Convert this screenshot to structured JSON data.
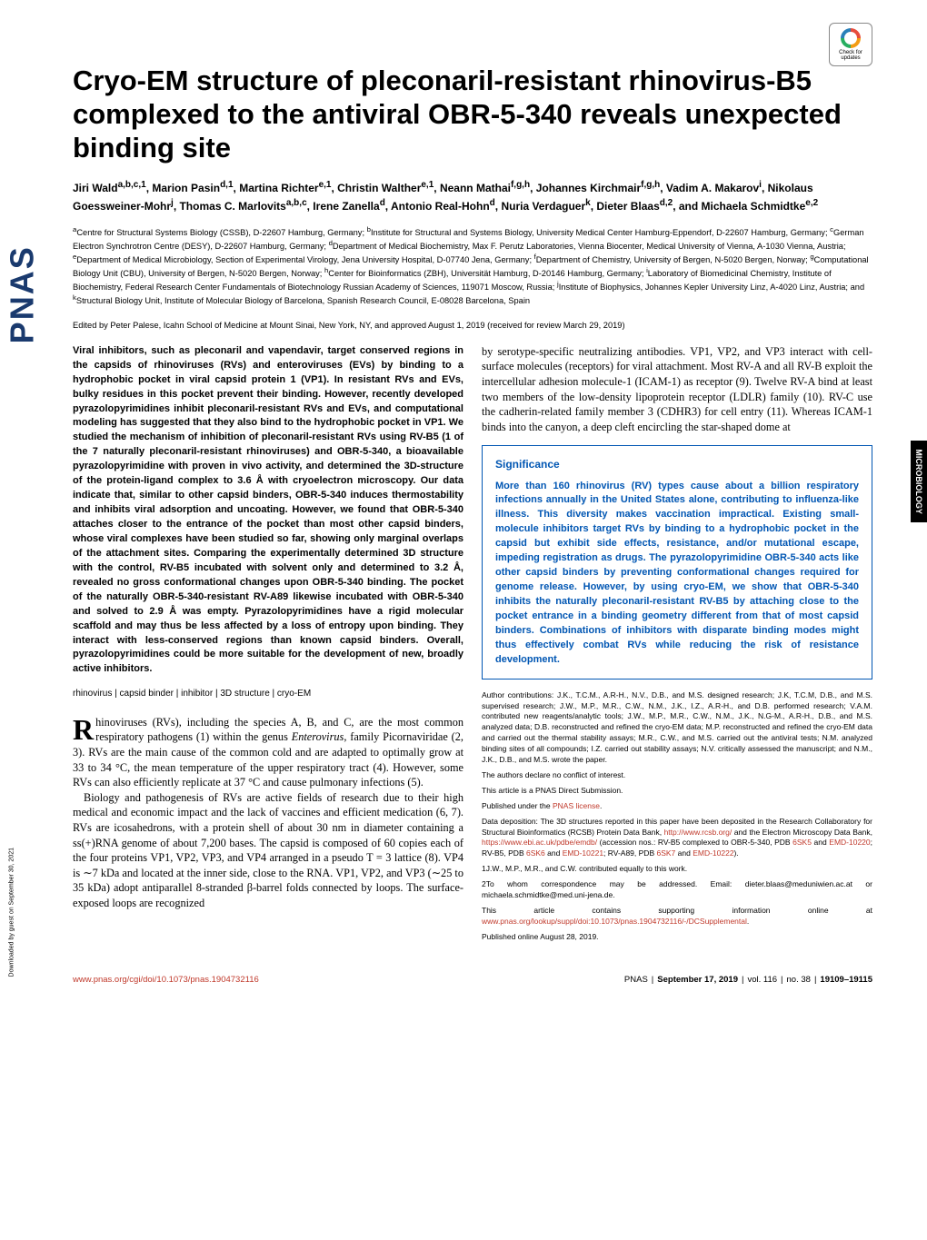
{
  "journal_sidebar": "PNAS",
  "download_note": "Downloaded by guest on September 30, 2021",
  "crossmark_label": "Check for updates",
  "side_tab": "MICROBIOLOGY",
  "title": "Cryo-EM structure of pleconaril-resistant rhinovirus-B5 complexed to the antiviral OBR-5-340 reveals unexpected binding site",
  "authors_html": "Jiri Wald<sup>a,b,c,1</sup>, Marion Pasin<sup>d,1</sup>, Martina Richter<sup>e,1</sup>, Christin Walther<sup>e,1</sup>, Neann Mathai<sup>f,g,h</sup>, Johannes Kirchmair<sup>f,g,h</sup>, Vadim A. Makarov<sup>i</sup>, Nikolaus Goessweiner-Mohr<sup>j</sup>, Thomas C. Marlovits<sup>a,b,c</sup>, Irene Zanella<sup>d</sup>, Antonio Real-Hohn<sup>d</sup>, Nuria Verdaguer<sup>k</sup>, Dieter Blaas<sup>d,2</sup>, and Michaela Schmidtke<sup>e,2</sup>",
  "affiliations_html": "<sup>a</sup>Centre for Structural Systems Biology (CSSB), D-22607 Hamburg, Germany; <sup>b</sup>Institute for Structural and Systems Biology, University Medical Center Hamburg-Eppendorf, D-22607 Hamburg, Germany; <sup>c</sup>German Electron Synchrotron Centre (DESY), D-22607 Hamburg, Germany; <sup>d</sup>Department of Medical Biochemistry, Max F. Perutz Laboratories, Vienna Biocenter, Medical University of Vienna, A-1030 Vienna, Austria; <sup>e</sup>Department of Medical Microbiology, Section of Experimental Virology, Jena University Hospital, D-07740 Jena, Germany; <sup>f</sup>Department of Chemistry, University of Bergen, N-5020 Bergen, Norway; <sup>g</sup>Computational Biology Unit (CBU), University of Bergen, N-5020 Bergen, Norway; <sup>h</sup>Center for Bioinformatics (ZBH), Universität Hamburg, D-20146 Hamburg, Germany; <sup>i</sup>Laboratory of Biomedicinal Chemistry, Institute of Biochemistry, Federal Research Center Fundamentals of Biotechnology Russian Academy of Sciences, 119071 Moscow, Russia; <sup>j</sup>Institute of Biophysics, Johannes Kepler University Linz, A-4020 Linz, Austria; and <sup>k</sup>Structural Biology Unit, Institute of Molecular Biology of Barcelona, Spanish Research Council, E-08028 Barcelona, Spain",
  "edited": "Edited by Peter Palese, Icahn School of Medicine at Mount Sinai, New York, NY, and approved August 1, 2019 (received for review March 29, 2019)",
  "abstract": "Viral inhibitors, such as pleconaril and vapendavir, target conserved regions in the capsids of rhinoviruses (RVs) and enteroviruses (EVs) by binding to a hydrophobic pocket in viral capsid protein 1 (VP1). In resistant RVs and EVs, bulky residues in this pocket prevent their binding. However, recently developed pyrazolopyrimidines inhibit pleconaril-resistant RVs and EVs, and computational modeling has suggested that they also bind to the hydrophobic pocket in VP1. We studied the mechanism of inhibition of pleconaril-resistant RVs using RV-B5 (1 of the 7 naturally pleconaril-resistant rhinoviruses) and OBR-5-340, a bioavailable pyrazolopyrimidine with proven in vivo activity, and determined the 3D-structure of the protein-ligand complex to 3.6 Å with cryoelectron microscopy. Our data indicate that, similar to other capsid binders, OBR-5-340 induces thermostability and inhibits viral adsorption and uncoating. However, we found that OBR-5-340 attaches closer to the entrance of the pocket than most other capsid binders, whose viral complexes have been studied so far, showing only marginal overlaps of the attachment sites. Comparing the experimentally determined 3D structure with the control, RV-B5 incubated with solvent only and determined to 3.2 Å, revealed no gross conformational changes upon OBR-5-340 binding. The pocket of the naturally OBR-5-340-resistant RV-A89 likewise incubated with OBR-5-340 and solved to 2.9 Å was empty. Pyrazolopyrimidines have a rigid molecular scaffold and may thus be less affected by a loss of entropy upon binding. They interact with less-conserved regions than known capsid binders. Overall, pyrazolopyrimidines could be more suitable for the development of new, broadly active inhibitors.",
  "keywords": "rhinovirus | capsid binder | inhibitor | 3D structure | cryo-EM",
  "body": {
    "p1_first": "R",
    "p1": "hinoviruses (RVs), including the species A, B, and C, are the most common respiratory pathogens (1) within the genus <i>Enterovirus</i>, family Picornaviridae (2, 3). RVs are the main cause of the common cold and are adapted to optimally grow at 33 to 34 °C, the mean temperature of the upper respiratory tract (4). However, some RVs can also efficiently replicate at 37 °C and cause pulmonary infections (5).",
    "p2": "Biology and pathogenesis of RVs are active fields of research due to their high medical and economic impact and the lack of vaccines and efficient medication (6, 7). RVs are icosahedrons, with a protein shell of about 30 nm in diameter containing a ss(+)RNA genome of about 7,200 bases. The capsid is composed of 60 copies each of the four proteins VP1, VP2, VP3, and VP4 arranged in a pseudo T = 3 lattice (8). VP4 is ∼7 kDa and located at the inner side, close to the RNA. VP1, VP2, and VP3 (∼25 to 35 kDa) adopt antiparallel 8-stranded β-barrel folds connected by loops. The surface-exposed loops are recognized",
    "p3": "by serotype-specific neutralizing antibodies. VP1, VP2, and VP3 interact with cell-surface molecules (receptors) for viral attachment. Most RV-A and all RV-B exploit the intercellular adhesion molecule-1 (ICAM-1) as receptor (9). Twelve RV-A bind at least two members of the low-density lipoprotein receptor (LDLR) family (10). RV-C use the cadherin-related family member 3 (CDHR3) for cell entry (11). Whereas ICAM-1 binds into the canyon, a deep cleft encircling the star-shaped dome at"
  },
  "significance": {
    "title": "Significance",
    "text": "More than 160 rhinovirus (RV) types cause about a billion respiratory infections annually in the United States alone, contributing to influenza-like illness. This diversity makes vaccination impractical. Existing small-molecule inhibitors target RVs by binding to a hydrophobic pocket in the capsid but exhibit side effects, resistance, and/or mutational escape, impeding registration as drugs. The pyrazolopyrimidine OBR-5-340 acts like other capsid binders by preventing conformational changes required for genome release. However, by using cryo-EM, we show that OBR-5-340 inhibits the naturally pleconaril-resistant RV-B5 by attaching close to the pocket entrance in a binding geometry different from that of most capsid binders. Combinations of inhibitors with disparate binding modes might thus effectively combat RVs while reducing the risk of resistance development."
  },
  "meta": {
    "contributions": "Author contributions: J.K., T.C.M., A.R-H., N.V., D.B., and M.S. designed research; J.K, T.C.M, D.B., and M.S. supervised research; J.W., M.P., M.R., C.W., N.M., J.K., I.Z., A.R-H., and D.B. performed research; V.A.M. contributed new reagents/analytic tools; J.W., M.P., M.R., C.W., N.M., J.K., N.G-M., A.R-H., D.B., and M.S. analyzed data; D.B. reconstructed and refined the cryo-EM data; M.P. reconstructed and refined the cryo-EM data and carried out the thermal stability assays; M.R., C.W., and M.S. carried out the antiviral tests; N.M. analyzed binding sites of all compounds; I.Z. carried out stability assays; N.V. critically assessed the manuscript; and N.M., J.K., D.B., and M.S. wrote the paper.",
    "conflict": "The authors declare no conflict of interest.",
    "submission": "This article is a PNAS Direct Submission.",
    "license_pre": "Published under the ",
    "license_link": "PNAS license",
    "license_post": ".",
    "deposition_pre": "Data deposition: The 3D structures reported in this paper have been deposited in the Research Collaboratory for Structural Bioinformatics (RCSB) Protein Data Bank, ",
    "link_rcsb": "http://www.rcsb.org/",
    "deposition_mid": " and the Electron Microscopy Data Bank, ",
    "link_emdb": "https://www.ebi.ac.uk/pdbe/emdb/",
    "deposition_post": " (accession nos.: RV-B5 complexed to OBR-5-340, PDB ",
    "pdb1": "6SK5",
    "and1": " and ",
    "emd1": "EMD-10220",
    "sep1": "; RV-B5, PDB ",
    "pdb2": "6SK6",
    "and2": " and ",
    "emd2": "EMD-10221",
    "sep2": "; RV-A89, PDB ",
    "pdb3": "6SK7",
    "and3": " and ",
    "emd3": "EMD-10222",
    "close": ").",
    "note1": "1J.W., M.P., M.R., and C.W. contributed equally to this work.",
    "note2": "2To whom correspondence may be addressed. Email: dieter.blaas@meduniwien.ac.at or michaela.schmidtke@med.uni-jena.de.",
    "supp_pre": "This article contains supporting information online at ",
    "supp_link": "www.pnas.org/lookup/suppl/doi:10.1073/pnas.1904732116/-/DCSupplemental",
    "supp_post": ".",
    "pub": "Published online August 28, 2019."
  },
  "footer": {
    "doi": "www.pnas.org/cgi/doi/10.1073/pnas.1904732116",
    "journal": "PNAS",
    "date": "September 17, 2019",
    "vol": "vol. 116",
    "no": "no. 38",
    "pages": "19109–19115"
  },
  "colors": {
    "brand_blue": "#1a3a6e",
    "sig_blue": "#0056b3",
    "link_red": "#c0392b",
    "text": "#000000",
    "bg": "#ffffff"
  }
}
